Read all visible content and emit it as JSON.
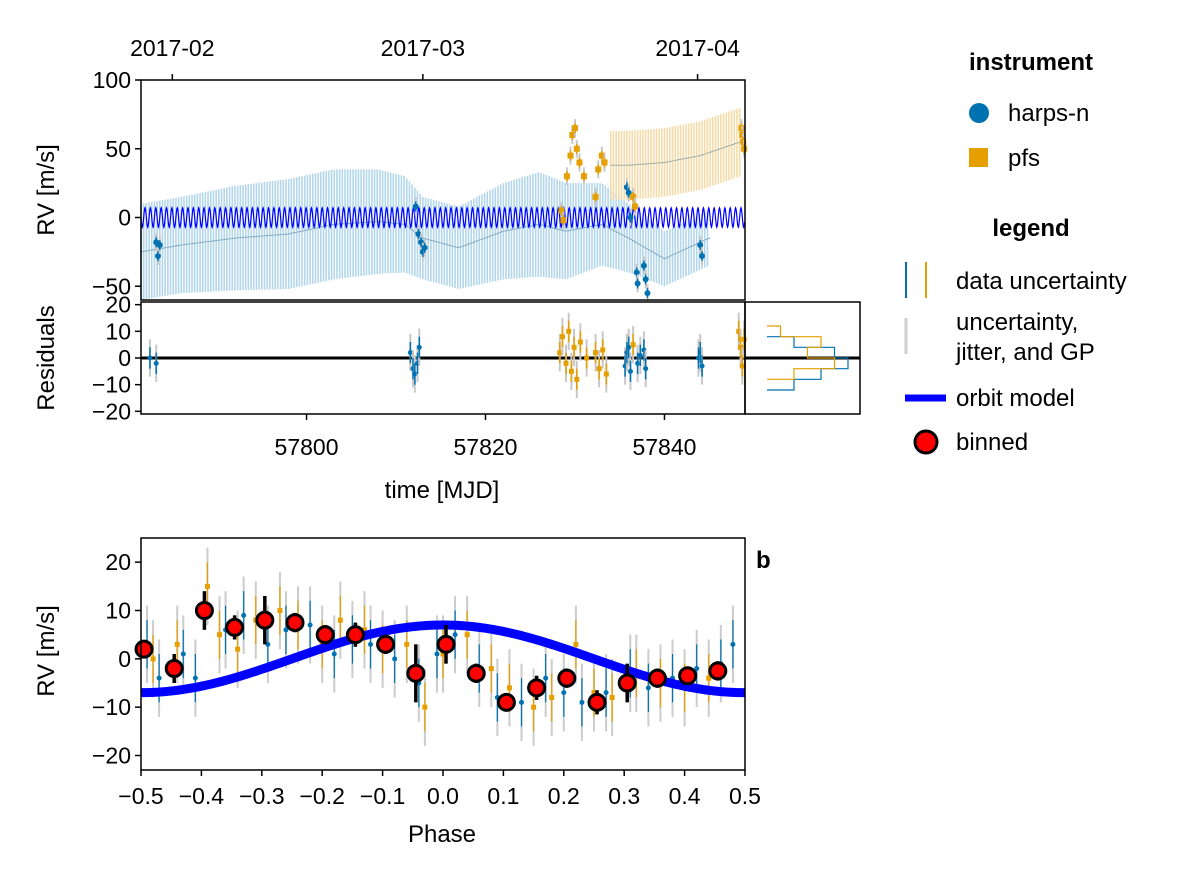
{
  "chart_data": [
    {
      "panel": "time-series",
      "type": "scatter",
      "xlabel": "time [MJD]",
      "ylabel": "RV [m/s]",
      "xlim": [
        57781.5,
        57849
      ],
      "ylim": [
        -60,
        100
      ],
      "x_ticks": [
        57800,
        57820,
        57840
      ],
      "y_ticks": [
        -50,
        0,
        50,
        100
      ],
      "top_axis_ticks": [
        {
          "mjd": 57785,
          "label": "2017-02"
        },
        {
          "mjd": 57813,
          "label": "2017-03"
        },
        {
          "mjd": 57843.7,
          "label": "2017-04"
        }
      ],
      "series": [
        {
          "name": "harps-n",
          "color": "#0072b2",
          "marker": "circle",
          "x": [
            57783.2,
            57783.4,
            57783.6,
            57812.2,
            57812.5,
            57812.8,
            57813.0,
            57813.2,
            57835.8,
            57836.0,
            57836.2,
            57836.9,
            57837.0,
            57837.7,
            57837.9,
            57838.1,
            57844.0,
            57844.2
          ],
          "y": [
            -18,
            -28,
            -20,
            8,
            -12,
            -18,
            -25,
            -22,
            22,
            18,
            0,
            -40,
            -48,
            -35,
            -45,
            -55,
            -20,
            -28
          ]
        },
        {
          "name": "pfs",
          "color": "#e69f00",
          "marker": "square",
          "x": [
            57828.5,
            57828.7,
            57829.1,
            57829.5,
            57829.7,
            57830.0,
            57830.2,
            57830.5,
            57831.0,
            57832.3,
            57832.6,
            57833.0,
            57833.3,
            57836.5,
            57836.7,
            57848.6,
            57848.7,
            57848.8,
            57848.9
          ],
          "y": [
            5,
            -2,
            30,
            45,
            60,
            65,
            50,
            40,
            30,
            15,
            35,
            45,
            40,
            15,
            8,
            65,
            60,
            55,
            50
          ]
        }
      ],
      "model": {
        "name": "orbit model",
        "color": "#0000ff",
        "amplitude": 7,
        "period_days": 0.6
      },
      "gp_bands": [
        {
          "instrument": "harps-n",
          "color": "#a6cfe6",
          "x": [
            57781.5,
            57786,
            57792,
            57798,
            57803,
            57808,
            57811,
            57813,
            57817,
            57822,
            57826,
            57829,
            57833,
            57836,
            57840,
            57845
          ],
          "mean": [
            -25,
            -20,
            -15,
            -12,
            -5,
            -3,
            -5,
            -15,
            -22,
            -10,
            -5,
            -10,
            -5,
            -15,
            -30,
            -15
          ],
          "half_width": [
            35,
            35,
            38,
            40,
            40,
            38,
            35,
            30,
            30,
            35,
            38,
            35,
            30,
            25,
            20,
            20
          ]
        },
        {
          "instrument": "pfs",
          "color": "#f3d59a",
          "x": [
            57834,
            57836,
            57840,
            57844,
            57848.5
          ],
          "mean": [
            38,
            38,
            40,
            45,
            55
          ],
          "half_width": [
            25,
            25,
            25,
            25,
            25
          ]
        }
      ]
    },
    {
      "panel": "residuals",
      "type": "scatter",
      "ylabel": "Residuals",
      "xlim": [
        57781.5,
        57849
      ],
      "ylim": [
        -21,
        21
      ],
      "y_ticks": [
        -20,
        -10,
        0,
        10,
        20
      ],
      "series": [
        {
          "name": "harps-n",
          "x": [
            57782.5,
            57783.2,
            57811.6,
            57811.9,
            57812.1,
            57812.4,
            57812.6,
            57835.6,
            57835.8,
            57836.0,
            57836.2,
            57837.0,
            57837.3,
            57837.7,
            57837.9,
            57843.8,
            57844.0,
            57844.2
          ],
          "y": [
            0,
            -2,
            2,
            -4,
            -6,
            -2,
            4,
            -3,
            2,
            4,
            -5,
            -2,
            1,
            3,
            -4,
            0,
            2,
            -3
          ]
        },
        {
          "name": "pfs",
          "x": [
            57828.3,
            57828.6,
            57829.0,
            57829.3,
            57829.6,
            57829.9,
            57830.2,
            57830.6,
            57831.3,
            57832.3,
            57832.7,
            57833.1,
            57833.5,
            57836.5,
            57848.3,
            57848.5,
            57848.7,
            57848.9
          ],
          "y": [
            2,
            8,
            -2,
            10,
            -5,
            4,
            -8,
            6,
            0,
            2,
            -4,
            3,
            -6,
            5,
            10,
            4,
            -3,
            7
          ]
        }
      ],
      "histograms": [
        {
          "instrument": "harps-n",
          "bin_edges": [
            -12,
            -8,
            -4,
            0,
            4,
            8
          ],
          "counts": [
            2,
            4,
            6,
            5,
            2
          ]
        },
        {
          "instrument": "pfs",
          "bin_edges": [
            -8,
            -4,
            0,
            4,
            8,
            12
          ],
          "counts": [
            2,
            5,
            3,
            4,
            1
          ]
        }
      ]
    },
    {
      "panel": "phase-folded",
      "type": "scatter",
      "title": "b",
      "xlabel": "Phase",
      "ylabel": "RV [m/s]",
      "xlim": [
        -0.5,
        0.5
      ],
      "ylim": [
        -23,
        25
      ],
      "x_ticks": [
        -0.5,
        -0.4,
        -0.3,
        -0.2,
        -0.1,
        0.0,
        0.1,
        0.2,
        0.3,
        0.4,
        0.5
      ],
      "y_ticks": [
        -20,
        -10,
        0,
        10,
        20
      ],
      "model": {
        "name": "orbit model",
        "amplitude": 7,
        "phase_offset": 0.25
      },
      "binned": {
        "name": "binned",
        "x": [
          -0.495,
          -0.445,
          -0.395,
          -0.345,
          -0.295,
          -0.245,
          -0.195,
          -0.145,
          -0.095,
          -0.045,
          0.005,
          0.055,
          0.105,
          0.155,
          0.205,
          0.255,
          0.305,
          0.355,
          0.405,
          0.455
        ],
        "y": [
          2,
          -2,
          10,
          6.5,
          8,
          7.5,
          5,
          5,
          3,
          -3,
          3,
          -3,
          -9,
          -6,
          -4,
          -9,
          -5,
          -4,
          -3.5,
          -2.5
        ],
        "err": [
          1.5,
          3,
          4,
          2.5,
          5,
          2,
          2,
          2.5,
          2,
          6,
          4,
          2,
          1.5,
          2.5,
          2,
          2.5,
          4,
          2,
          1.5,
          2
        ]
      },
      "series": [
        {
          "name": "harps-n",
          "x": [
            -0.49,
            -0.47,
            -0.43,
            -0.41,
            -0.36,
            -0.33,
            -0.29,
            -0.26,
            -0.22,
            -0.18,
            -0.15,
            -0.12,
            -0.08,
            -0.04,
            -0.01,
            0.02,
            0.06,
            0.09,
            0.13,
            0.17,
            0.2,
            0.23,
            0.27,
            0.31,
            0.34,
            0.38,
            0.42,
            0.46,
            0.48
          ],
          "y": [
            3,
            -4,
            1,
            -4,
            6,
            9,
            3,
            6,
            7,
            1,
            4,
            3,
            0,
            -5,
            1,
            5,
            -2,
            -8,
            -9,
            -4,
            -7,
            -9,
            -7,
            -3,
            -6,
            -4,
            -2,
            -1,
            3
          ]
        },
        {
          "name": "pfs",
          "x": [
            -0.48,
            -0.44,
            -0.39,
            -0.37,
            -0.34,
            -0.31,
            -0.27,
            -0.24,
            -0.2,
            -0.17,
            -0.13,
            -0.1,
            -0.06,
            -0.03,
            0.0,
            0.04,
            0.08,
            0.11,
            0.15,
            0.18,
            0.22,
            0.25,
            0.28,
            0.32,
            0.36,
            0.4,
            0.44
          ],
          "y": [
            0,
            3,
            15,
            5,
            2,
            8,
            10,
            7,
            3,
            8,
            6,
            2,
            3,
            -10,
            1,
            5,
            -2,
            -6,
            -10,
            -8,
            3,
            -7,
            -8,
            -3,
            -5,
            -6,
            -4
          ]
        }
      ]
    }
  ],
  "legend": {
    "instrument_title": "instrument",
    "instrument_items": [
      {
        "label": "harps-n",
        "color": "#0072b2",
        "marker": "circle"
      },
      {
        "label": "pfs",
        "color": "#e69f00",
        "marker": "square"
      }
    ],
    "legend_title": "legend",
    "legend_items": [
      {
        "label": "data uncertainty"
      },
      {
        "label_line1": "uncertainty,",
        "label_line2": "jitter, and GP"
      },
      {
        "label": "orbit model"
      },
      {
        "label": "binned"
      }
    ]
  }
}
